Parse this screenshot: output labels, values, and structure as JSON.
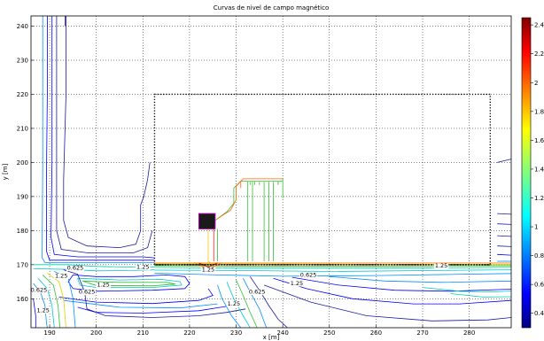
{
  "chart_data": {
    "type": "contour",
    "title": "Curvas de nivel de campo magnético",
    "xlabel": "x [m]",
    "ylabel": "y [m]",
    "xlim": [
      186,
      289
    ],
    "ylim": [
      151.5,
      243
    ],
    "grid": true,
    "x_ticks": [
      190,
      200,
      210,
      220,
      230,
      240,
      250,
      260,
      270,
      280
    ],
    "x_tick_labels": [
      "190",
      "200",
      "210",
      "220",
      "230",
      "240",
      "250",
      "260",
      "270",
      "280"
    ],
    "y_ticks": [
      160,
      170,
      180,
      190,
      200,
      210,
      220,
      230,
      240
    ],
    "y_tick_labels": [
      "160",
      "170",
      "180",
      "190",
      "200",
      "210",
      "220",
      "230",
      "240"
    ],
    "colorbar": {
      "min": 0.3,
      "max": 2.45,
      "ticks": [
        0.4,
        0.6,
        0.8,
        1,
        1.2,
        1.4,
        1.6,
        1.8,
        2,
        2.2,
        2.4
      ],
      "tick_labels": [
        "0.4",
        "0.6",
        "0.8",
        "1",
        "1.2",
        "1.4",
        "1.6",
        "1.8",
        "2",
        "2.2",
        "2.4"
      ]
    },
    "contour_labels": [
      {
        "text": "0.625",
        "x": 195.5,
        "y": 168.5
      },
      {
        "text": "1.25",
        "x": 192.5,
        "y": 166.2
      },
      {
        "text": "0.625",
        "x": 198,
        "y": 161.5
      },
      {
        "text": "1.25",
        "x": 201.5,
        "y": 163.6
      },
      {
        "text": "1.25",
        "x": 210,
        "y": 168.8
      },
      {
        "text": "0.625",
        "x": 187.7,
        "y": 162
      },
      {
        "text": "1.25",
        "x": 188.6,
        "y": 156
      },
      {
        "text": "1.25",
        "x": 224,
        "y": 168
      },
      {
        "text": "0.625",
        "x": 245.5,
        "y": 166.5
      },
      {
        "text": "1.25",
        "x": 243,
        "y": 164
      },
      {
        "text": "1.25",
        "x": 274,
        "y": 169.2
      },
      {
        "text": "0.625",
        "x": 234.5,
        "y": 161.5
      },
      {
        "text": "1.25",
        "x": 229.5,
        "y": 158
      }
    ],
    "building_outline": {
      "x": [
        212.5,
        284.5
      ],
      "y": [
        170,
        220
      ]
    },
    "substation": {
      "x": [
        222,
        225.5
      ],
      "y": [
        180.5,
        185
      ]
    }
  }
}
